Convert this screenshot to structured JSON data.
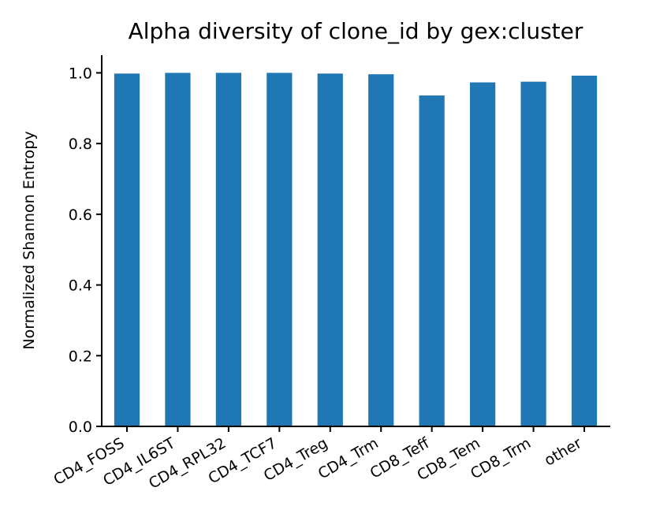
{
  "chart_data": {
    "type": "bar",
    "title": "Alpha diversity of clone_id by gex:cluster",
    "xlabel": "",
    "ylabel": "Normalized Shannon Entropy",
    "categories": [
      "CD4_FOSS",
      "CD4_IL6ST",
      "CD4_RPL32",
      "CD4_TCF7",
      "CD4_Treg",
      "CD4_Trm",
      "CD8_Teff",
      "CD8_Tem",
      "CD8_Trm",
      "other"
    ],
    "values": [
      0.998,
      1.0,
      1.0,
      1.0,
      0.998,
      0.996,
      0.936,
      0.973,
      0.975,
      0.992
    ],
    "ylim": [
      0,
      1.05
    ],
    "yticks": [
      0.0,
      0.2,
      0.4,
      0.6,
      0.8,
      1.0
    ],
    "ytick_labels": [
      "0.0",
      "0.2",
      "0.4",
      "0.6",
      "0.8",
      "1.0"
    ],
    "grid": false,
    "bar_color": "#1f77b4"
  }
}
